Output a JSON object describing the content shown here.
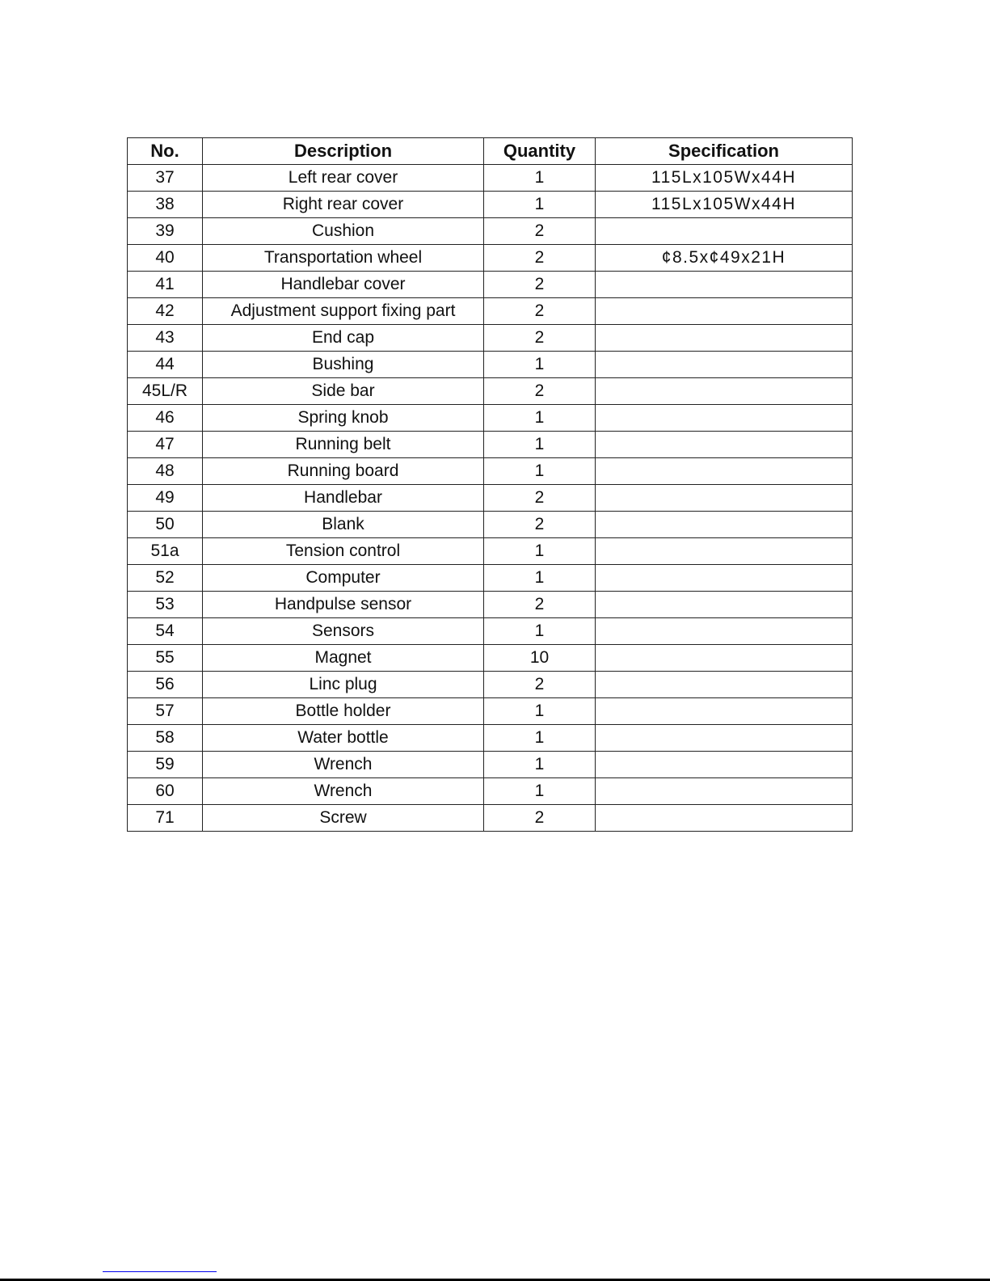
{
  "table": {
    "headers": [
      "No.",
      "Description",
      "Quantity",
      "Specification"
    ],
    "rows": [
      [
        "37",
        "Left rear cover",
        "1",
        "115Lx105Wx44H"
      ],
      [
        "38",
        "Right rear cover",
        "1",
        "115Lx105Wx44H"
      ],
      [
        "39",
        "Cushion",
        "2",
        ""
      ],
      [
        "40",
        "Transportation wheel",
        "2",
        "¢8.5x¢49x21H"
      ],
      [
        "41",
        "Handlebar cover",
        "2",
        ""
      ],
      [
        "42",
        "Adjustment support fixing part",
        "2",
        ""
      ],
      [
        "43",
        "End cap",
        "2",
        ""
      ],
      [
        "44",
        "Bushing",
        "1",
        ""
      ],
      [
        "45L/R",
        "Side bar",
        "2",
        ""
      ],
      [
        "46",
        "Spring knob",
        "1",
        ""
      ],
      [
        "47",
        "Running belt",
        "1",
        ""
      ],
      [
        "48",
        "Running board",
        "1",
        ""
      ],
      [
        "49",
        "Handlebar",
        "2",
        ""
      ],
      [
        "50",
        "Blank",
        "2",
        ""
      ],
      [
        "51a",
        "Tension control",
        "1",
        ""
      ],
      [
        "52",
        "Computer",
        "1",
        ""
      ],
      [
        "53",
        "Handpulse sensor",
        "2",
        ""
      ],
      [
        "54",
        "Sensors",
        "1",
        ""
      ],
      [
        "55",
        "Magnet",
        "10",
        ""
      ],
      [
        "56",
        "Linc plug",
        "2",
        ""
      ],
      [
        "57",
        "Bottle holder",
        "1",
        ""
      ],
      [
        "58",
        "Water bottle",
        "1",
        ""
      ],
      [
        "59",
        "Wrench",
        "1",
        ""
      ],
      [
        "60",
        "Wrench",
        "1",
        ""
      ],
      [
        "71",
        "Screw",
        "2",
        ""
      ]
    ]
  },
  "colors": {
    "link_line": "#0000ee",
    "rule": "#000000"
  }
}
